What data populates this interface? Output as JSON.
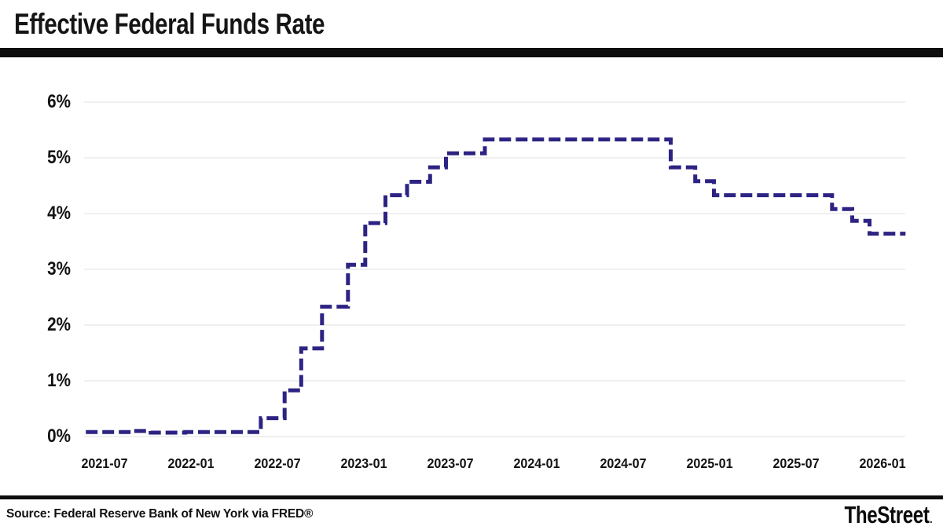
{
  "header": {
    "title": "Effective Federal Funds Rate"
  },
  "footer": {
    "source": "Source: Federal Reserve Bank of New York via FRED®",
    "brand": "TheStreet",
    "brand_dot": "."
  },
  "colors": {
    "line": "#2d2383",
    "grid": "#e6e6e6",
    "bar": "#0e0e0e",
    "text": "#121212"
  },
  "chart_data": {
    "type": "line",
    "subtype": "step",
    "title": "Effective Federal Funds Rate",
    "ylabel": "",
    "xlabel": "",
    "unit": "percent",
    "grid": "horizontal-only",
    "legend": "none",
    "line_style": "dashed",
    "ylim": [
      0,
      6.3
    ],
    "y_ticks": [
      "0%",
      "1%",
      "2%",
      "3%",
      "4%",
      "5%",
      "6%"
    ],
    "x_ticks": [
      "2021-07",
      "2022-01",
      "2022-07",
      "2023-01",
      "2023-07",
      "2024-01",
      "2024-07",
      "2025-01",
      "2025-07",
      "2026-01"
    ],
    "series": [
      {
        "name": "Effective Federal Funds Rate",
        "points": [
          {
            "m": -1.3,
            "date": "2021-05",
            "rate": 0.08
          },
          {
            "m": 1.9,
            "date": "2021-09",
            "rate": 0.1
          },
          {
            "m": 3.2,
            "date": "2021-10",
            "rate": 0.07
          },
          {
            "m": 5.6,
            "date": "2022-01",
            "rate": 0.08
          },
          {
            "m": 10.85,
            "date": "2022-05",
            "rate": 0.33
          },
          {
            "m": 12.5,
            "date": "2022-07",
            "rate": 0.83
          },
          {
            "m": 13.65,
            "date": "2022-08",
            "rate": 1.58
          },
          {
            "m": 15.1,
            "date": "2022-10",
            "rate": 2.33
          },
          {
            "m": 16.9,
            "date": "2022-11",
            "rate": 3.08
          },
          {
            "m": 18.1,
            "date": "2023-01",
            "rate": 3.83
          },
          {
            "m": 19.5,
            "date": "2023-02",
            "rate": 4.33
          },
          {
            "m": 21.0,
            "date": "2023-04",
            "rate": 4.57
          },
          {
            "m": 22.6,
            "date": "2023-05",
            "rate": 4.83
          },
          {
            "m": 23.7,
            "date": "2023-06",
            "rate": 5.08
          },
          {
            "m": 26.4,
            "date": "2023-09",
            "rate": 5.33
          },
          {
            "m": 39.3,
            "date": "2024-10",
            "rate": 4.83
          },
          {
            "m": 41.0,
            "date": "2024-12",
            "rate": 4.58
          },
          {
            "m": 42.3,
            "date": "2025-01",
            "rate": 4.33
          },
          {
            "m": 50.5,
            "date": "2025-09",
            "rate": 4.08
          },
          {
            "m": 51.9,
            "date": "2025-10",
            "rate": 3.87
          },
          {
            "m": 53.1,
            "date": "2025-12",
            "rate": 3.64
          }
        ],
        "end_m": 55.6,
        "end_date": "2026-02"
      }
    ]
  }
}
